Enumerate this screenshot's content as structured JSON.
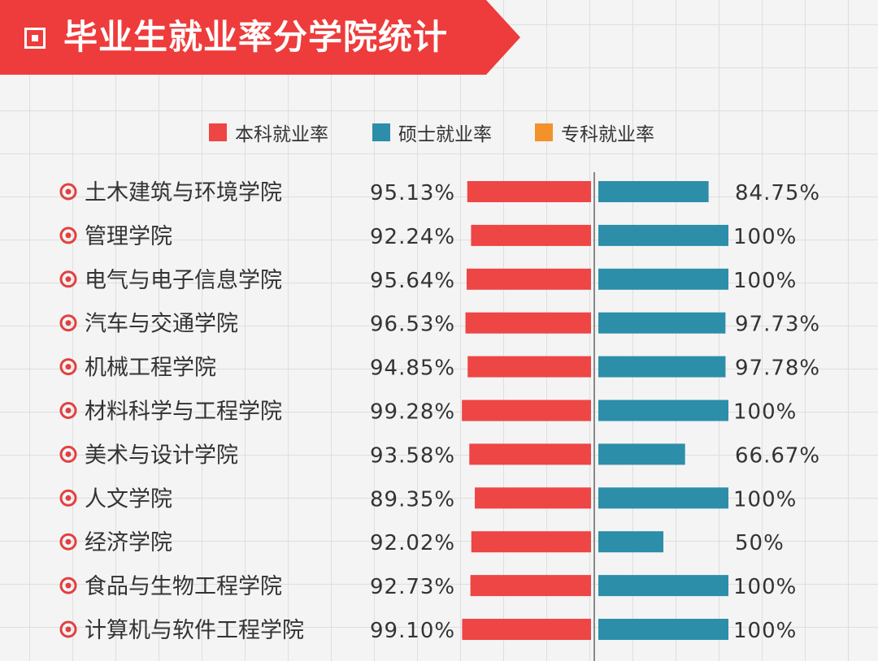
{
  "title": "毕业生就业率分学院统计",
  "colors": {
    "banner": "#ee3b3b",
    "undergrad": "#ee4545",
    "master": "#2c8ea9",
    "junior": "#f3922b",
    "text": "#333333",
    "axis": "#888888",
    "row_icon": "#e24040"
  },
  "legend": [
    {
      "label": "本科就业率",
      "color": "#ee4545"
    },
    {
      "label": "硕士就业率",
      "color": "#2c8ea9"
    },
    {
      "label": "专科就业率",
      "color": "#f3922b"
    }
  ],
  "chart_data": {
    "type": "bar",
    "orientation": "horizontal-diverging",
    "title": "毕业生就业率分学院统计",
    "categories": [
      "土木建筑与环境学院",
      "管理学院",
      "电气与电子信息学院",
      "汽车与交通学院",
      "机械工程学院",
      "材料科学与工程学院",
      "美术与设计学院",
      "人文学院",
      "经济学院",
      "食品与生物工程学院",
      "计算机与软件工程学院"
    ],
    "series": [
      {
        "name": "本科就业率",
        "color": "#ee4545",
        "values": [
          95.13,
          92.24,
          95.64,
          96.53,
          94.85,
          99.28,
          93.58,
          89.35,
          92.02,
          92.73,
          99.1
        ],
        "labels": [
          "95.13%",
          "92.24%",
          "95.64%",
          "96.53%",
          "94.85%",
          "99.28%",
          "93.58%",
          "89.35%",
          "92.02%",
          "92.73%",
          "99.10%"
        ]
      },
      {
        "name": "硕士就业率",
        "color": "#2c8ea9",
        "values": [
          84.75,
          100,
          100,
          97.73,
          97.78,
          100,
          66.67,
          100,
          50,
          100,
          100
        ],
        "labels": [
          "84.75%",
          "100%",
          "100%",
          "97.73%",
          "97.78%",
          "100%",
          "66.67%",
          "100%",
          "50%",
          "100%",
          "100%"
        ]
      }
    ],
    "grid": false,
    "legend_position": "top"
  }
}
